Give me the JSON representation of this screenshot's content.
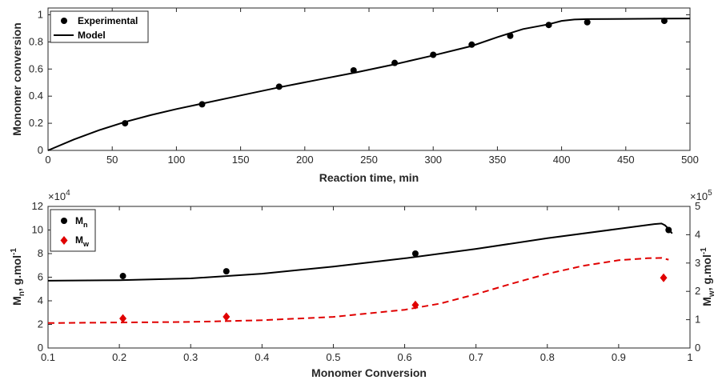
{
  "chart_data": [
    {
      "type": "line",
      "xlabel": "Reaction time, min",
      "ylabel": "Monomer conversion",
      "xlim": [
        0,
        500
      ],
      "ylim": [
        0,
        1.05
      ],
      "xticks": [
        "0",
        "50",
        "100",
        "150",
        "200",
        "250",
        "300",
        "350",
        "400",
        "450",
        "500"
      ],
      "yticks": [
        "0",
        "0.2",
        "0.4",
        "0.6",
        "0.8",
        "1"
      ],
      "legend": {
        "position": "top-left",
        "entries": [
          "Experimental",
          "Model"
        ]
      },
      "series": [
        {
          "name": "Experimental",
          "style": "markers",
          "color": "#000000",
          "x": [
            60,
            120,
            180,
            238,
            270,
            300,
            330,
            360,
            390,
            420,
            480
          ],
          "y": [
            0.2,
            0.34,
            0.47,
            0.59,
            0.645,
            0.705,
            0.78,
            0.845,
            0.925,
            0.945,
            0.955
          ]
        },
        {
          "name": "Model",
          "style": "line",
          "color": "#000000",
          "x": [
            0,
            20,
            40,
            60,
            80,
            100,
            120,
            150,
            180,
            210,
            240,
            270,
            300,
            330,
            350,
            370,
            390,
            400,
            410,
            420,
            450,
            480,
            500
          ],
          "y": [
            0,
            0.08,
            0.15,
            0.21,
            0.26,
            0.305,
            0.345,
            0.405,
            0.465,
            0.52,
            0.575,
            0.635,
            0.7,
            0.77,
            0.835,
            0.895,
            0.93,
            0.955,
            0.965,
            0.968,
            0.97,
            0.972,
            0.973
          ]
        }
      ]
    },
    {
      "type": "line",
      "xlabel": "Monomer Conversion",
      "ylabel_left": "Mₙ, g.mol⁻¹",
      "ylabel_left_main": "M",
      "ylabel_left_sub": "n",
      "ylabel_left_rest": ", g.mol",
      "ylabel_left_sup": "-1",
      "ylabel_right_main": "M",
      "ylabel_right_sub": "w",
      "ylabel_right_rest": ", g.mol",
      "ylabel_right_sup": "-1",
      "xlim": [
        0.1,
        1
      ],
      "ylim_left": [
        0,
        12
      ],
      "ylim_right": [
        0,
        5
      ],
      "left_multiplier": "×10",
      "left_multiplier_exp": "4",
      "right_multiplier": "×10",
      "right_multiplier_exp": "5",
      "xticks": [
        "0.1",
        "0.2",
        "0.3",
        "0.4",
        "0.5",
        "0.6",
        "0.7",
        "0.8",
        "0.9",
        "1"
      ],
      "yticks_left": [
        "0",
        "2",
        "4",
        "6",
        "8",
        "10",
        "12"
      ],
      "yticks_right": [
        "0",
        "1",
        "2",
        "3",
        "4",
        "5"
      ],
      "legend": {
        "position": "top-left",
        "entries": [
          {
            "main": "M",
            "sub": "n"
          },
          {
            "main": "M",
            "sub": "w"
          }
        ]
      },
      "series": [
        {
          "name": "Mn experimental",
          "style": "markers-circle",
          "axis": "left",
          "color": "#000000",
          "x": [
            0.205,
            0.35,
            0.615,
            0.97
          ],
          "y": [
            6.1,
            6.5,
            8.0,
            10.0
          ]
        },
        {
          "name": "Mw experimental",
          "style": "markers-diamond",
          "axis": "right",
          "color": "#e00000",
          "x": [
            0.205,
            0.35,
            0.615,
            0.963
          ],
          "y": [
            1.04,
            1.1,
            1.52,
            2.48
          ]
        },
        {
          "name": "Mn model",
          "style": "line",
          "axis": "left",
          "color": "#000000",
          "x": [
            0.1,
            0.2,
            0.3,
            0.4,
            0.5,
            0.6,
            0.7,
            0.8,
            0.9,
            0.95,
            0.96,
            0.965,
            0.97,
            0.975
          ],
          "y": [
            5.7,
            5.75,
            5.9,
            6.3,
            6.9,
            7.6,
            8.4,
            9.3,
            10.1,
            10.5,
            10.55,
            10.4,
            10.1,
            9.7
          ]
        },
        {
          "name": "Mw model",
          "style": "dashed",
          "axis": "right",
          "color": "#e00000",
          "x": [
            0.1,
            0.2,
            0.3,
            0.4,
            0.5,
            0.6,
            0.65,
            0.7,
            0.75,
            0.8,
            0.85,
            0.9,
            0.94,
            0.96,
            0.97
          ],
          "y": [
            0.88,
            0.9,
            0.92,
            0.98,
            1.1,
            1.35,
            1.57,
            1.9,
            2.27,
            2.62,
            2.9,
            3.1,
            3.17,
            3.18,
            3.12
          ]
        }
      ]
    }
  ]
}
